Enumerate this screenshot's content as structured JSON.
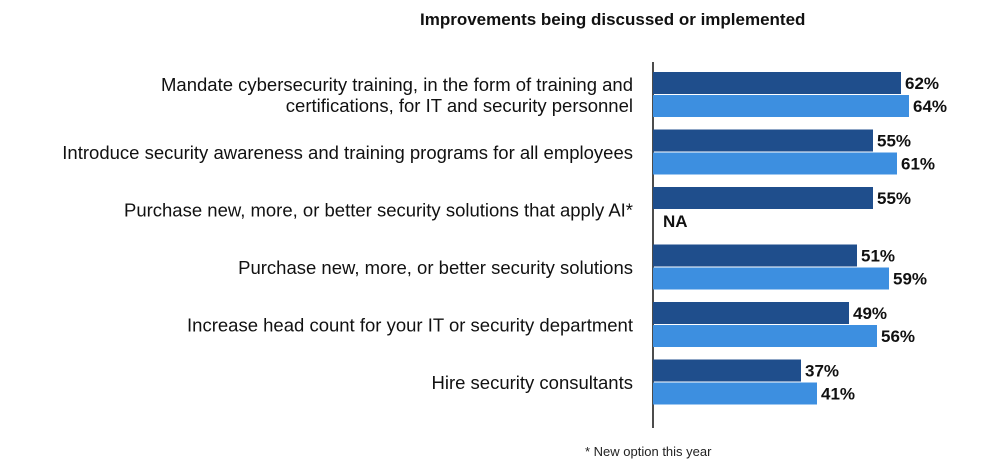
{
  "colors": {
    "prev_series": "#1f4e8c",
    "curr_series": "#3d8fe0",
    "axis": "#111111",
    "label_text": "#111111"
  },
  "chart_data": {
    "type": "bar",
    "orientation": "horizontal",
    "title": "Improvements being discussed or implemented",
    "footnote": "* New option this year",
    "value_format": "percent",
    "xlim": [
      0,
      100
    ],
    "grid": false,
    "categories": [
      {
        "lines": [
          "Mandate cybersecurity training, in the form of training and",
          "certifications, for IT and security personnel"
        ]
      },
      {
        "lines": [
          "Introduce security awareness and training programs for all employees"
        ]
      },
      {
        "lines": [
          "Purchase new, more, or better security solutions that apply AI*"
        ]
      },
      {
        "lines": [
          "Purchase new, more, or better security solutions"
        ]
      },
      {
        "lines": [
          "Increase head count for your IT or security department"
        ]
      },
      {
        "lines": [
          "Hire security consultants"
        ]
      }
    ],
    "series": [
      {
        "color": "#1f4e8c",
        "values": [
          62,
          55,
          55,
          51,
          49,
          37
        ],
        "labels": [
          "62%",
          "55%",
          "55%",
          "51%",
          "49%",
          "37%"
        ]
      },
      {
        "color": "#3d8fe0",
        "values": [
          64,
          61,
          null,
          59,
          56,
          41
        ],
        "labels": [
          "64%",
          "61%",
          "NA",
          "59%",
          "56%",
          "41%"
        ]
      }
    ]
  }
}
